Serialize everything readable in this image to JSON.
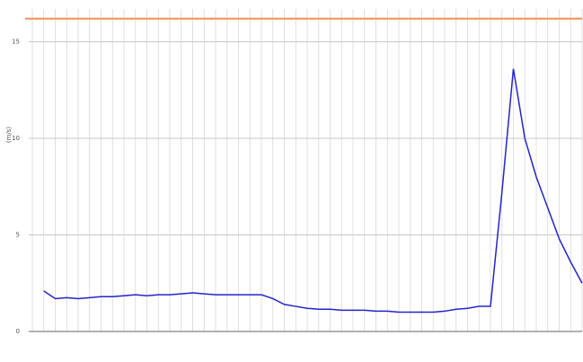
{
  "chart_data": {
    "type": "line",
    "y_label": "(m/s)",
    "categories": [
      null,
      null,
      null,
      null,
      null,
      null,
      null,
      null,
      null,
      null,
      null,
      null,
      null,
      null,
      null,
      null,
      null,
      null,
      null,
      null,
      null,
      null,
      null,
      null,
      null,
      null,
      null,
      null,
      null,
      null,
      null,
      null,
      null,
      null,
      null,
      null,
      null,
      null,
      null,
      null,
      null,
      null,
      null,
      null,
      null,
      null,
      null,
      null,
      null
    ],
    "series": [
      {
        "color": "#2424c8",
        "values": [
          null,
          2.1,
          1.7,
          1.75,
          1.7,
          1.75,
          1.8,
          1.8,
          1.85,
          1.9,
          1.85,
          1.9,
          1.9,
          1.95,
          2.0,
          1.95,
          1.9,
          1.9,
          1.9,
          1.9,
          1.9,
          1.7,
          1.4,
          1.3,
          1.2,
          1.15,
          1.15,
          1.1,
          1.1,
          1.1,
          1.05,
          1.05,
          1.0,
          1.0,
          1.0,
          1.0,
          1.05,
          1.15,
          1.2,
          1.3,
          1.3,
          7.2,
          13.6,
          10.0,
          8.0,
          6.4,
          4.8,
          3.6,
          2.5
        ]
      }
    ],
    "threshold": 16.2,
    "threshold_color": "#f0905a",
    "ylim": [
      0,
      16.7
    ],
    "yticks": [
      0,
      5,
      10,
      15
    ],
    "grid": true
  }
}
